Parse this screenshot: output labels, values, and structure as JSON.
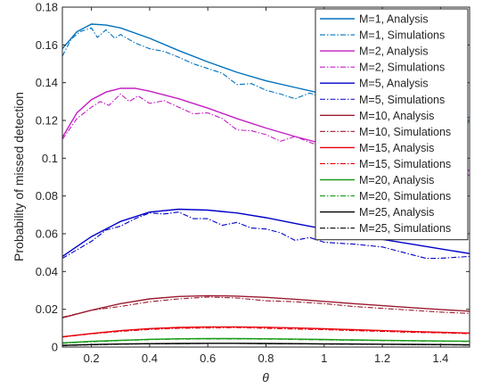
{
  "chart_data": {
    "type": "line",
    "title": "",
    "xlabel": "θ",
    "ylabel": "Probability of missed detection",
    "xlim": [
      0.1,
      1.5
    ],
    "ylim": [
      0,
      0.18
    ],
    "xticks": [
      0.2,
      0.4,
      0.6,
      0.8,
      1,
      1.2,
      1.4
    ],
    "xtick_labels": [
      "0.2",
      "0.4",
      "0.6",
      "0.8",
      "1",
      "1.2",
      "1.4"
    ],
    "yticks": [
      0,
      0.02,
      0.04,
      0.06,
      0.08,
      0.1,
      0.12,
      0.14,
      0.16,
      0.18
    ],
    "ytick_labels": [
      "0",
      "0.02",
      "0.04",
      "0.06",
      "0.08",
      "0.1",
      "0.12",
      "0.14",
      "0.16",
      "0.18"
    ],
    "grid": false,
    "legend_position": "top-right",
    "series": [
      {
        "name": "M=1, Analysis",
        "color": "#0072BD",
        "dash": "solid",
        "x": [
          0.1,
          0.15,
          0.2,
          0.25,
          0.3,
          0.4,
          0.5,
          0.6,
          0.7,
          0.8,
          0.9,
          1.0,
          1.1,
          1.2,
          1.3,
          1.4,
          1.5
        ],
        "y": [
          0.158,
          0.167,
          0.171,
          0.1705,
          0.169,
          0.1635,
          0.157,
          0.151,
          0.1455,
          0.141,
          0.1375,
          0.134,
          0.131,
          0.128,
          0.1255,
          0.1235,
          0.1215
        ]
      },
      {
        "name": "M=1, Simulations",
        "color": "#0072BD",
        "dash": "dashdot",
        "x": [
          0.1,
          0.13,
          0.16,
          0.2,
          0.22,
          0.25,
          0.28,
          0.3,
          0.35,
          0.4,
          0.45,
          0.5,
          0.55,
          0.6,
          0.65,
          0.7,
          0.75,
          0.8,
          0.85,
          0.9,
          0.95,
          1.0,
          1.05,
          1.1,
          1.2,
          1.3,
          1.4,
          1.5
        ],
        "y": [
          0.154,
          0.163,
          0.167,
          0.169,
          0.164,
          0.168,
          0.1635,
          0.1655,
          0.161,
          0.158,
          0.1565,
          0.1535,
          0.15,
          0.1475,
          0.145,
          0.139,
          0.1395,
          0.136,
          0.134,
          0.1315,
          0.1345,
          0.132,
          0.1285,
          0.1285,
          0.125,
          0.124,
          0.1205,
          0.119
        ]
      },
      {
        "name": "M=2, Analysis",
        "color": "#C31EC3",
        "dash": "solid",
        "x": [
          0.1,
          0.15,
          0.2,
          0.25,
          0.3,
          0.35,
          0.4,
          0.5,
          0.6,
          0.7,
          0.8,
          0.9,
          1.0,
          1.1,
          1.2,
          1.3,
          1.4,
          1.5
        ],
        "y": [
          0.111,
          0.124,
          0.131,
          0.135,
          0.137,
          0.137,
          0.1355,
          0.1315,
          0.1265,
          0.121,
          0.116,
          0.1115,
          0.1075,
          0.104,
          0.101,
          0.098,
          0.0955,
          0.0935
        ]
      },
      {
        "name": "M=2, Simulations",
        "color": "#C31EC3",
        "dash": "dashdot",
        "x": [
          0.1,
          0.15,
          0.2,
          0.23,
          0.26,
          0.3,
          0.33,
          0.36,
          0.4,
          0.45,
          0.5,
          0.55,
          0.6,
          0.65,
          0.7,
          0.75,
          0.8,
          0.85,
          0.9,
          1.0,
          1.1,
          1.2,
          1.3,
          1.4,
          1.5
        ],
        "y": [
          0.11,
          0.121,
          0.127,
          0.13,
          0.128,
          0.134,
          0.13,
          0.133,
          0.129,
          0.1305,
          0.127,
          0.1235,
          0.124,
          0.121,
          0.115,
          0.1145,
          0.1125,
          0.109,
          0.1115,
          0.1055,
          0.105,
          0.098,
          0.0965,
          0.093,
          0.091
        ]
      },
      {
        "name": "M=5, Analysis",
        "color": "#0000C8",
        "dash": "solid",
        "x": [
          0.1,
          0.2,
          0.3,
          0.4,
          0.5,
          0.6,
          0.7,
          0.8,
          0.9,
          1.0,
          1.1,
          1.2,
          1.3,
          1.4,
          1.5
        ],
        "y": [
          0.048,
          0.0585,
          0.0665,
          0.0715,
          0.073,
          0.0725,
          0.071,
          0.0685,
          0.0655,
          0.0625,
          0.0595,
          0.057,
          0.0545,
          0.052,
          0.0495
        ]
      },
      {
        "name": "M=5, Simulations",
        "color": "#0000C8",
        "dash": "dashdot",
        "x": [
          0.1,
          0.2,
          0.25,
          0.3,
          0.35,
          0.4,
          0.45,
          0.5,
          0.55,
          0.6,
          0.65,
          0.7,
          0.75,
          0.8,
          0.85,
          0.9,
          0.95,
          1.0,
          1.1,
          1.2,
          1.3,
          1.35,
          1.4,
          1.5
        ],
        "y": [
          0.047,
          0.056,
          0.062,
          0.064,
          0.068,
          0.071,
          0.0705,
          0.0715,
          0.068,
          0.068,
          0.0645,
          0.066,
          0.063,
          0.0625,
          0.0605,
          0.0565,
          0.058,
          0.0555,
          0.0545,
          0.053,
          0.049,
          0.047,
          0.047,
          0.048
        ]
      },
      {
        "name": "M=10, Analysis",
        "color": "#9B1B30",
        "dash": "solid",
        "x": [
          0.1,
          0.2,
          0.3,
          0.4,
          0.5,
          0.6,
          0.7,
          0.8,
          0.9,
          1.0,
          1.1,
          1.2,
          1.3,
          1.4,
          1.5
        ],
        "y": [
          0.0155,
          0.0195,
          0.023,
          0.0255,
          0.0268,
          0.0272,
          0.027,
          0.0263,
          0.0253,
          0.0242,
          0.023,
          0.0219,
          0.0209,
          0.0199,
          0.019
        ]
      },
      {
        "name": "M=10, Simulations",
        "color": "#9B1B30",
        "dash": "dashdot",
        "x": [
          0.1,
          0.2,
          0.3,
          0.4,
          0.5,
          0.6,
          0.7,
          0.8,
          0.9,
          1.0,
          1.1,
          1.2,
          1.3,
          1.4,
          1.5
        ],
        "y": [
          0.0158,
          0.0195,
          0.0215,
          0.024,
          0.0255,
          0.0265,
          0.026,
          0.0245,
          0.024,
          0.023,
          0.0215,
          0.0205,
          0.0195,
          0.0185,
          0.0178
        ]
      },
      {
        "name": "M=15, Analysis",
        "color": "#E8000B",
        "dash": "solid",
        "x": [
          0.1,
          0.2,
          0.3,
          0.4,
          0.5,
          0.6,
          0.7,
          0.8,
          0.9,
          1.0,
          1.1,
          1.2,
          1.3,
          1.4,
          1.5
        ],
        "y": [
          0.0055,
          0.0072,
          0.0087,
          0.0098,
          0.0104,
          0.0107,
          0.0107,
          0.0105,
          0.0101,
          0.0097,
          0.0092,
          0.0087,
          0.0082,
          0.0078,
          0.0074
        ]
      },
      {
        "name": "M=15, Simulations",
        "color": "#E8000B",
        "dash": "dashdot",
        "x": [
          0.1,
          0.2,
          0.3,
          0.4,
          0.5,
          0.6,
          0.7,
          0.8,
          0.9,
          1.0,
          1.1,
          1.2,
          1.3,
          1.4,
          1.5
        ],
        "y": [
          0.0053,
          0.007,
          0.0083,
          0.0093,
          0.0099,
          0.0101,
          0.0103,
          0.0099,
          0.0095,
          0.0092,
          0.0087,
          0.0083,
          0.0078,
          0.0075,
          0.0071
        ]
      },
      {
        "name": "M=20, Analysis",
        "color": "#1A9A1A",
        "dash": "solid",
        "x": [
          0.1,
          0.2,
          0.3,
          0.4,
          0.5,
          0.6,
          0.7,
          0.8,
          0.9,
          1.0,
          1.1,
          1.2,
          1.3,
          1.4,
          1.5
        ],
        "y": [
          0.0022,
          0.003,
          0.0036,
          0.0041,
          0.0044,
          0.0045,
          0.0045,
          0.0044,
          0.0042,
          0.004,
          0.0038,
          0.0036,
          0.0034,
          0.0032,
          0.0031
        ]
      },
      {
        "name": "M=20, Simulations",
        "color": "#1A9A1A",
        "dash": "dashdot",
        "x": [
          0.1,
          0.2,
          0.3,
          0.4,
          0.5,
          0.6,
          0.7,
          0.8,
          0.9,
          1.0,
          1.1,
          1.2,
          1.3,
          1.4,
          1.5
        ],
        "y": [
          0.002,
          0.0028,
          0.0034,
          0.0039,
          0.0042,
          0.0043,
          0.0043,
          0.0042,
          0.004,
          0.0038,
          0.0036,
          0.0034,
          0.0032,
          0.0031,
          0.0029
        ]
      },
      {
        "name": "M=25, Analysis",
        "color": "#000000",
        "dash": "solid",
        "x": [
          0.1,
          0.2,
          0.3,
          0.4,
          0.5,
          0.6,
          0.7,
          0.8,
          0.9,
          1.0,
          1.1,
          1.2,
          1.3,
          1.4,
          1.5
        ],
        "y": [
          0.0009,
          0.0013,
          0.0016,
          0.0018,
          0.0019,
          0.002,
          0.002,
          0.0019,
          0.0018,
          0.0017,
          0.0016,
          0.0015,
          0.0014,
          0.0013,
          0.0012
        ]
      },
      {
        "name": "M=25, Simulations",
        "color": "#000000",
        "dash": "dashdot",
        "x": [
          0.1,
          0.2,
          0.3,
          0.4,
          0.5,
          0.6,
          0.7,
          0.8,
          0.9,
          1.0,
          1.1,
          1.2,
          1.3,
          1.4,
          1.5
        ],
        "y": [
          0.0008,
          0.0012,
          0.0015,
          0.0017,
          0.0018,
          0.0019,
          0.0019,
          0.0018,
          0.0017,
          0.0016,
          0.0015,
          0.0014,
          0.0013,
          0.0012,
          0.0011
        ]
      }
    ]
  }
}
